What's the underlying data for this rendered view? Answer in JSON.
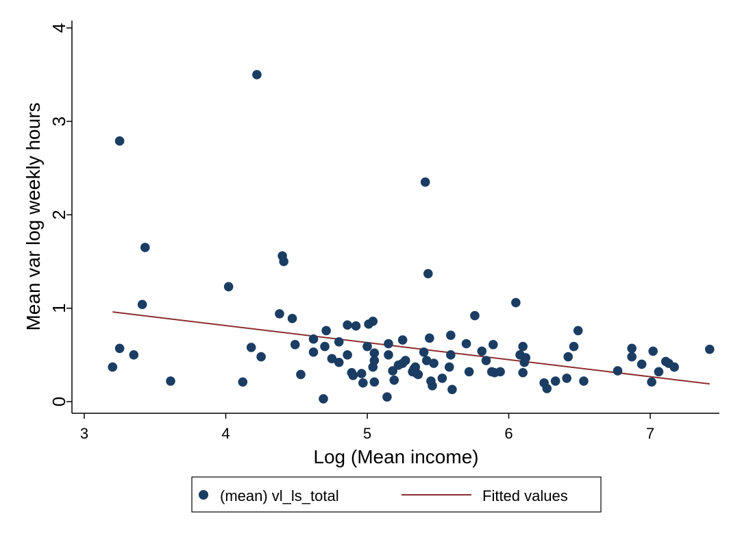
{
  "chart_data": {
    "type": "scatter",
    "title": "",
    "xlabel": "Log (Mean income)",
    "ylabel": "Mean var log weekly hours",
    "xlim": [
      3,
      7.45
    ],
    "ylim": [
      0,
      4.1
    ],
    "xticks": [
      "3",
      "4",
      "5",
      "6",
      "7"
    ],
    "yticks": [
      "0",
      "1",
      "2",
      "3",
      "4"
    ],
    "grid": false,
    "legend_position": "bottom",
    "series": [
      {
        "name": "(mean) vl_ls_total",
        "kind": "scatter",
        "color": "#1b3d63",
        "points": [
          [
            3.2,
            0.37
          ],
          [
            3.25,
            2.79
          ],
          [
            3.25,
            0.57
          ],
          [
            3.35,
            0.5
          ],
          [
            3.41,
            1.04
          ],
          [
            3.43,
            1.65
          ],
          [
            3.61,
            0.22
          ],
          [
            4.02,
            1.23
          ],
          [
            4.12,
            0.21
          ],
          [
            4.18,
            0.58
          ],
          [
            4.22,
            3.5
          ],
          [
            4.25,
            0.48
          ],
          [
            4.38,
            0.94
          ],
          [
            4.4,
            1.56
          ],
          [
            4.41,
            1.5
          ],
          [
            4.47,
            0.89
          ],
          [
            4.49,
            0.61
          ],
          [
            4.53,
            0.29
          ],
          [
            4.62,
            0.67
          ],
          [
            4.62,
            0.53
          ],
          [
            4.69,
            0.03
          ],
          [
            4.7,
            0.59
          ],
          [
            4.71,
            0.76
          ],
          [
            4.75,
            0.46
          ],
          [
            4.8,
            0.42
          ],
          [
            4.8,
            0.64
          ],
          [
            4.86,
            0.5
          ],
          [
            4.86,
            0.82
          ],
          [
            4.89,
            0.31
          ],
          [
            4.9,
            0.28
          ],
          [
            4.92,
            0.81
          ],
          [
            4.96,
            0.3
          ],
          [
            4.97,
            0.2
          ],
          [
            5.0,
            0.59
          ],
          [
            5.01,
            0.83
          ],
          [
            5.04,
            0.86
          ],
          [
            5.04,
            0.37
          ],
          [
            5.05,
            0.44
          ],
          [
            5.05,
            0.52
          ],
          [
            5.05,
            0.21
          ],
          [
            5.14,
            0.05
          ],
          [
            5.15,
            0.62
          ],
          [
            5.15,
            0.5
          ],
          [
            5.18,
            0.33
          ],
          [
            5.19,
            0.23
          ],
          [
            5.22,
            0.39
          ],
          [
            5.25,
            0.66
          ],
          [
            5.25,
            0.41
          ],
          [
            5.27,
            0.44
          ],
          [
            5.32,
            0.32
          ],
          [
            5.33,
            0.35
          ],
          [
            5.34,
            0.37
          ],
          [
            5.35,
            0.3
          ],
          [
            5.36,
            0.29
          ],
          [
            5.4,
            0.53
          ],
          [
            5.41,
            2.35
          ],
          [
            5.42,
            0.44
          ],
          [
            5.43,
            1.37
          ],
          [
            5.44,
            0.68
          ],
          [
            5.45,
            0.22
          ],
          [
            5.46,
            0.17
          ],
          [
            5.47,
            0.41
          ],
          [
            5.53,
            0.25
          ],
          [
            5.58,
            0.37
          ],
          [
            5.59,
            0.71
          ],
          [
            5.59,
            0.5
          ],
          [
            5.6,
            0.13
          ],
          [
            5.7,
            0.62
          ],
          [
            5.72,
            0.32
          ],
          [
            5.76,
            0.92
          ],
          [
            5.81,
            0.54
          ],
          [
            5.84,
            0.44
          ],
          [
            5.88,
            0.32
          ],
          [
            5.89,
            0.61
          ],
          [
            5.9,
            0.31
          ],
          [
            5.94,
            0.32
          ],
          [
            6.05,
            1.06
          ],
          [
            6.08,
            0.5
          ],
          [
            6.1,
            0.59
          ],
          [
            6.1,
            0.31
          ],
          [
            6.11,
            0.42
          ],
          [
            6.12,
            0.47
          ],
          [
            6.25,
            0.2
          ],
          [
            6.27,
            0.14
          ],
          [
            6.33,
            0.22
          ],
          [
            6.41,
            0.25
          ],
          [
            6.42,
            0.48
          ],
          [
            6.46,
            0.59
          ],
          [
            6.49,
            0.76
          ],
          [
            6.53,
            0.22
          ],
          [
            6.77,
            0.33
          ],
          [
            6.87,
            0.57
          ],
          [
            6.87,
            0.48
          ],
          [
            6.94,
            0.4
          ],
          [
            7.01,
            0.21
          ],
          [
            7.02,
            0.54
          ],
          [
            7.06,
            0.32
          ],
          [
            7.11,
            0.43
          ],
          [
            7.13,
            0.41
          ],
          [
            7.17,
            0.37
          ],
          [
            7.42,
            0.56
          ]
        ]
      },
      {
        "name": "Fitted values",
        "kind": "line",
        "color": "#8b2e2e",
        "points": [
          [
            3.2,
            0.96
          ],
          [
            7.42,
            0.19
          ]
        ]
      }
    ]
  }
}
